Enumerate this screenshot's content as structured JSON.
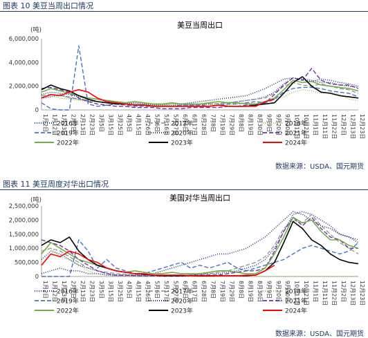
{
  "captions": {
    "chart1": "图表 10 美豆当周出口情况",
    "chart2": "图表 11 美豆周度对华出口情况"
  },
  "sources": {
    "chart1": "数据来源：USDA、国元期货",
    "chart2": "数据来源：USDA、国元期货"
  },
  "series_styles": [
    {
      "name": "2016年",
      "color": "#1f3c88",
      "dash": "1,2",
      "width": 1.6
    },
    {
      "name": "2017年",
      "color": "#8c8c8c",
      "dash": "6,3",
      "width": 1.2
    },
    {
      "name": "2018年",
      "color": "#a6b53a",
      "dash": "1,2",
      "width": 1.4
    },
    {
      "name": "2019年",
      "color": "#4472c4",
      "dash": "6,3",
      "width": 1.4
    },
    {
      "name": "2020年",
      "color": "#1f3864",
      "dash": "1,2",
      "width": 1.6
    },
    {
      "name": "2021年",
      "color": "#7030a0",
      "dash": "6,3",
      "width": 1.4
    },
    {
      "name": "2022年",
      "color": "#70ad47",
      "dash": "",
      "width": 1.6
    },
    {
      "name": "2023年",
      "color": "#000000",
      "dash": "",
      "width": 1.6
    },
    {
      "name": "2024年",
      "color": "#ff0000",
      "dash": "",
      "width": 1.6
    }
  ],
  "chart_data": [
    {
      "type": "line",
      "title": "美豆当周出口",
      "ylabel": "(吨)",
      "ylim": [
        0,
        6000000
      ],
      "yticks": [
        "0",
        "2,000,000",
        "4,000,000",
        "6,000,000"
      ],
      "categories": [
        "1月2日",
        "1月12日",
        "1月23日",
        "2月2日",
        "2月13日",
        "2月23日",
        "3月5日",
        "3月15日",
        "3月25日",
        "4月5日",
        "4月15日",
        "4月26日",
        "5月6日",
        "5月16日",
        "5月27日",
        "6月6日",
        "6月17日",
        "6月28日",
        "7月8日",
        "7月19日",
        "7月29日",
        "8月8日",
        "8月19日",
        "8月30日",
        "9月9日",
        "9月20日",
        "9月30日",
        "10月11日",
        "10月21日",
        "11月1日",
        "11月11日",
        "11月22日",
        "12月2日",
        "12月13日",
        "12月23日"
      ],
      "series": [
        {
          "name": "2016年",
          "values": [
            1300000,
            1500000,
            1400000,
            1300000,
            1100000,
            1000000,
            900000,
            700000,
            600000,
            500000,
            500000,
            400000,
            400000,
            400000,
            350000,
            400000,
            400000,
            450000,
            500000,
            500000,
            600000,
            700000,
            800000,
            900000,
            1100000,
            1500000,
            2200000,
            2700000,
            2500000,
            2400000,
            2600000,
            2500000,
            2300000,
            2200000,
            2000000
          ]
        },
        {
          "name": "2017年",
          "values": [
            1200000,
            1300000,
            1200000,
            1100000,
            900000,
            800000,
            700000,
            600000,
            500000,
            500000,
            400000,
            400000,
            350000,
            300000,
            300000,
            300000,
            350000,
            400000,
            500000,
            550000,
            600000,
            700000,
            800000,
            900000,
            1000000,
            1400000,
            2000000,
            2300000,
            2100000,
            2000000,
            2200000,
            2000000,
            1800000,
            1700000,
            1400000
          ]
        },
        {
          "name": "2018年",
          "values": [
            1100000,
            1200000,
            1000000,
            900000,
            800000,
            700000,
            700000,
            600000,
            500000,
            600000,
            500000,
            500000,
            400000,
            400000,
            400000,
            500000,
            400000,
            300000,
            400000,
            500000,
            400000,
            500000,
            600000,
            500000,
            700000,
            900000,
            1100000,
            1500000,
            1700000,
            1600000,
            1400000,
            1500000,
            1300000,
            900000,
            800000
          ]
        },
        {
          "name": "2019年",
          "values": [
            600000,
            100000,
            0,
            0,
            5400000,
            500000,
            300000,
            400000,
            500000,
            400000,
            300000,
            300000,
            300000,
            300000,
            300000,
            400000,
            400000,
            400000,
            300000,
            400000,
            500000,
            500000,
            600000,
            700000,
            600000,
            900000,
            1500000,
            1800000,
            1900000,
            1900000,
            1800000,
            1600000,
            1500000,
            1400000,
            1100000
          ]
        },
        {
          "name": "2020年",
          "values": [
            1000000,
            1100000,
            1300000,
            1000000,
            900000,
            800000,
            700000,
            600000,
            500000,
            500000,
            600000,
            500000,
            400000,
            400000,
            500000,
            500000,
            600000,
            700000,
            800000,
            900000,
            1000000,
            1100000,
            1200000,
            1500000,
            1800000,
            2200000,
            2600000,
            2700000,
            2600000,
            2500000,
            2300000,
            2300000,
            2100000,
            2000000,
            1900000
          ]
        },
        {
          "name": "2021年",
          "values": [
            1800000,
            1900000,
            1700000,
            1500000,
            1000000,
            700000,
            500000,
            400000,
            300000,
            300000,
            200000,
            200000,
            200000,
            100000,
            100000,
            100000,
            200000,
            200000,
            200000,
            200000,
            300000,
            300000,
            400000,
            400000,
            600000,
            1300000,
            2100000,
            2700000,
            2500000,
            3500000,
            2500000,
            2200000,
            2100000,
            2100000,
            1800000
          ]
        },
        {
          "name": "2022年",
          "values": [
            1500000,
            1800000,
            1600000,
            1400000,
            1200000,
            1000000,
            900000,
            800000,
            700000,
            600000,
            700000,
            600000,
            500000,
            500000,
            600000,
            500000,
            500000,
            500000,
            600000,
            700000,
            600000,
            600000,
            500000,
            500000,
            700000,
            1000000,
            1700000,
            2500000,
            2300000,
            2400000,
            2100000,
            2000000,
            1900000,
            1800000,
            1600000
          ]
        },
        {
          "name": "2023年",
          "values": [
            1700000,
            2100000,
            1800000,
            1600000,
            1200000,
            900000,
            700000,
            600000,
            500000,
            500000,
            400000,
            400000,
            300000,
            300000,
            300000,
            300000,
            300000,
            300000,
            300000,
            400000,
            300000,
            300000,
            300000,
            400000,
            500000,
            600000,
            1400000,
            2300000,
            2800000,
            2000000,
            1500000,
            1400000,
            1200000,
            1100000,
            1000000
          ]
        },
        {
          "name": "2024年",
          "values": [
            1000000,
            1300000,
            1200000,
            1500000,
            1700000,
            1500000,
            1000000,
            700000,
            600000,
            500000,
            400000,
            400000,
            300000,
            300000,
            300000,
            300000,
            300000,
            300000,
            300000,
            400000,
            300000,
            300000,
            300000,
            300000,
            700000,
            900000,
            null,
            null,
            null,
            null,
            null,
            null,
            null,
            null,
            null
          ]
        }
      ]
    },
    {
      "type": "line",
      "title": "美国对华当周出口",
      "ylabel": "(吨)",
      "ylim": [
        0,
        2500000
      ],
      "yticks": [
        "0",
        "500,000",
        "1,000,000",
        "1,500,000",
        "2,000,000",
        "2,500,000"
      ],
      "categories": [
        "1月2日",
        "1月12日",
        "1月23日",
        "2月2日",
        "2月13日",
        "2月23日",
        "3月5日",
        "3月15日",
        "3月25日",
        "4月5日",
        "4月15日",
        "4月26日",
        "5月6日",
        "5月17日",
        "5月27日",
        "6月7日",
        "6月17日",
        "6月28日",
        "7月8日",
        "7月19日",
        "7月29日",
        "8月8日",
        "8月19日",
        "8月30日",
        "9月9日",
        "9月20日",
        "9月30日",
        "10月11日",
        "10月21日",
        "11月1日",
        "11月11日",
        "11月22日",
        "12月2日",
        "12月13日",
        "12月23日"
      ],
      "series": [
        {
          "name": "2016年",
          "values": [
            600000,
            900000,
            800000,
            600000,
            400000,
            300000,
            200000,
            100000,
            50000,
            30000,
            20000,
            10000,
            20000,
            30000,
            30000,
            50000,
            50000,
            80000,
            100000,
            100000,
            150000,
            200000,
            300000,
            400000,
            600000,
            1000000,
            1600000,
            2200000,
            2300000,
            2200000,
            2000000,
            1800000,
            1500000,
            1400000,
            1200000
          ]
        },
        {
          "name": "2017年",
          "values": [
            900000,
            1000000,
            900000,
            700000,
            500000,
            300000,
            200000,
            150000,
            100000,
            80000,
            50000,
            50000,
            30000,
            30000,
            30000,
            30000,
            50000,
            80000,
            100000,
            150000,
            200000,
            300000,
            400000,
            500000,
            700000,
            1100000,
            1700000,
            2000000,
            1900000,
            2200000,
            1800000,
            1500000,
            1200000,
            1000000,
            800000
          ]
        },
        {
          "name": "2018年",
          "values": [
            900000,
            1000000,
            700000,
            600000,
            400000,
            200000,
            100000,
            50000,
            30000,
            20000,
            10000,
            10000,
            10000,
            10000,
            10000,
            10000,
            0,
            0,
            0,
            0,
            0,
            0,
            0,
            0,
            0,
            0,
            0,
            0,
            0,
            0,
            0,
            0,
            0,
            0,
            0
          ]
        },
        {
          "name": "2019年",
          "values": [
            0,
            0,
            0,
            0,
            1300000,
            900000,
            300000,
            600000,
            300000,
            200000,
            100000,
            100000,
            200000,
            300000,
            400000,
            500000,
            300000,
            400000,
            300000,
            400000,
            500000,
            300000,
            200000,
            300000,
            400000,
            500000,
            600000,
            800000,
            1000000,
            1100000,
            1000000,
            900000,
            800000,
            900000,
            1200000
          ]
        },
        {
          "name": "2020年",
          "values": [
            100000,
            200000,
            300000,
            200000,
            200000,
            100000,
            100000,
            50000,
            30000,
            30000,
            50000,
            50000,
            100000,
            200000,
            300000,
            400000,
            500000,
            600000,
            700000,
            800000,
            800000,
            900000,
            1000000,
            1200000,
            1400000,
            1700000,
            2000000,
            2300000,
            2200000,
            2000000,
            1800000,
            1700000,
            1500000,
            1400000,
            1300000
          ]
        },
        {
          "name": "2021年",
          "values": [
            1300000,
            1200000,
            1100000,
            900000,
            600000,
            400000,
            200000,
            100000,
            50000,
            50000,
            30000,
            20000,
            20000,
            10000,
            10000,
            10000,
            50000,
            50000,
            50000,
            50000,
            100000,
            150000,
            200000,
            200000,
            300000,
            900000,
            1600000,
            2100000,
            1800000,
            2100000,
            1700000,
            1400000,
            1300000,
            1000000,
            1000000
          ]
        },
        {
          "name": "2022年",
          "values": [
            800000,
            1200000,
            1000000,
            800000,
            600000,
            500000,
            400000,
            300000,
            200000,
            150000,
            200000,
            150000,
            100000,
            100000,
            150000,
            100000,
            100000,
            100000,
            150000,
            200000,
            200000,
            150000,
            100000,
            100000,
            300000,
            800000,
            1400000,
            2100000,
            1900000,
            2000000,
            1600000,
            1300000,
            1300000,
            1100000,
            1000000
          ]
        },
        {
          "name": "2023年",
          "values": [
            1100000,
            1300000,
            1200000,
            1400000,
            900000,
            600000,
            400000,
            300000,
            200000,
            150000,
            100000,
            80000,
            50000,
            30000,
            30000,
            30000,
            30000,
            20000,
            20000,
            30000,
            30000,
            30000,
            30000,
            50000,
            200000,
            500000,
            1200000,
            1950000,
            1700000,
            1300000,
            1100000,
            800000,
            600000,
            500000,
            450000
          ]
        },
        {
          "name": "2024年",
          "values": [
            400000,
            800000,
            700000,
            900000,
            800000,
            600000,
            500000,
            300000,
            200000,
            150000,
            100000,
            100000,
            50000,
            50000,
            50000,
            50000,
            30000,
            30000,
            30000,
            30000,
            30000,
            30000,
            50000,
            50000,
            200000,
            400000,
            null,
            null,
            null,
            null,
            null,
            null,
            null,
            null,
            null
          ]
        }
      ]
    }
  ]
}
